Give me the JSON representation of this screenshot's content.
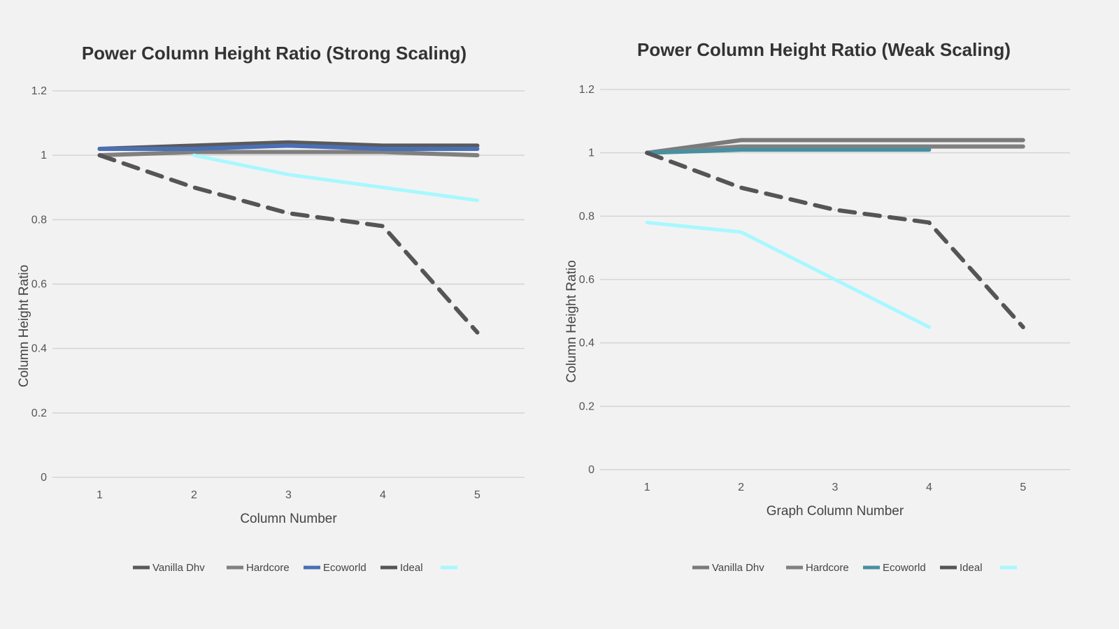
{
  "chart_data": [
    {
      "type": "line",
      "title": "Power Column Height Ratio (Strong Scaling)",
      "xlabel": "Column Number",
      "ylabel": "Column Height Ratio",
      "x": [
        1,
        2,
        3,
        4,
        5
      ],
      "xlim": [
        0.5,
        5.5
      ],
      "ylim": [
        0,
        1.2
      ],
      "yticks": [
        "0",
        "0.2",
        "0.4",
        "0.6",
        "0.8",
        "1",
        "1.2"
      ],
      "xticks": [
        "1",
        "2",
        "3",
        "4",
        "5"
      ],
      "grid": true,
      "legend": "bottom",
      "series": [
        {
          "name": "Vanilla Dhv",
          "color": "#5a5a5a",
          "dash": false,
          "values": [
            1.02,
            1.03,
            1.04,
            1.03,
            1.03
          ]
        },
        {
          "name": "Hardcore",
          "color": "#808080",
          "dash": false,
          "values": [
            1.0,
            1.01,
            1.01,
            1.01,
            1.0
          ]
        },
        {
          "name": "Ecoworld",
          "color": "#4a6fb5",
          "dash": false,
          "values": [
            1.02,
            1.02,
            1.03,
            1.02,
            1.02
          ]
        },
        {
          "name": "Ideal",
          "color": "#555555",
          "dash": true,
          "values": [
            1.0,
            0.9,
            0.82,
            0.78,
            0.45
          ]
        },
        {
          "name": "",
          "color": "#a8f8ff",
          "dash": false,
          "values": [
            null,
            1.0,
            0.94,
            0.9,
            0.86
          ]
        }
      ]
    },
    {
      "type": "line",
      "title": "Power Column Height Ratio (Weak Scaling)",
      "xlabel": "Graph Column Number",
      "ylabel": "Column Height Ratio",
      "x": [
        1,
        2,
        3,
        4,
        5
      ],
      "xlim": [
        0.5,
        5.5
      ],
      "ylim": [
        0,
        1.2
      ],
      "yticks": [
        "0",
        "0.2",
        "0.4",
        "0.6",
        "0.8",
        "1",
        "1.2"
      ],
      "xticks": [
        "1",
        "2",
        "3",
        "4",
        "5"
      ],
      "grid": true,
      "legend": "bottom",
      "series": [
        {
          "name": "Vanilla Dhv",
          "color": "#7a7a7a",
          "dash": false,
          "values": [
            1.0,
            1.04,
            1.04,
            1.04,
            1.04
          ]
        },
        {
          "name": "Hardcore",
          "color": "#808080",
          "dash": false,
          "values": [
            1.0,
            1.02,
            1.02,
            1.02,
            1.02
          ]
        },
        {
          "name": "Ecoworld",
          "color": "#4a8fa0",
          "dash": false,
          "values": [
            1.0,
            1.01,
            1.01,
            1.01,
            null
          ]
        },
        {
          "name": "Ideal",
          "color": "#555555",
          "dash": true,
          "values": [
            1.0,
            0.89,
            0.82,
            0.78,
            0.45
          ]
        },
        {
          "name": "",
          "color": "#a8f8ff",
          "dash": false,
          "values": [
            0.78,
            0.75,
            0.6,
            0.45,
            null
          ]
        }
      ]
    }
  ]
}
